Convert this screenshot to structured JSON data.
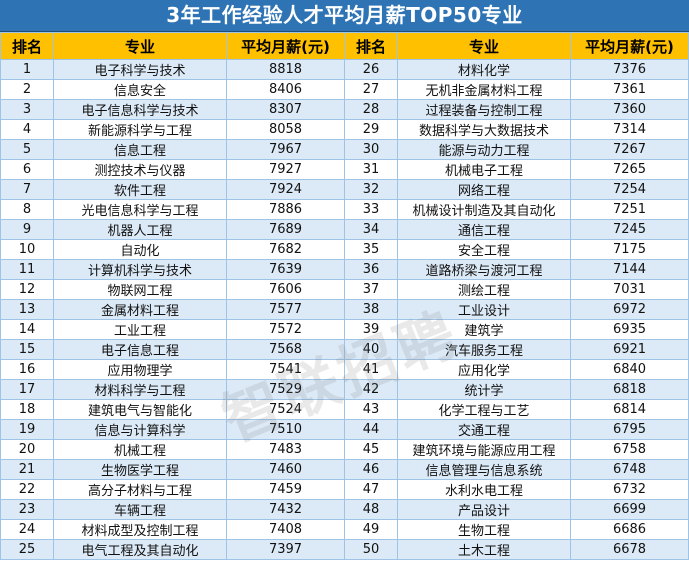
{
  "title": "3年工作经验人才平均月薪TOP50专业",
  "headers": {
    "rank": "排名",
    "major": "专业",
    "salary": "平均月薪(元)"
  },
  "watermark": "智联招聘",
  "colors": {
    "title_bg": "#2e74b5",
    "header_bg": "#ffc000",
    "row_alt_bg": "#dceaf7"
  },
  "rows": [
    {
      "left": {
        "rank": "1",
        "major": "电子科学与技术",
        "salary": "8818"
      },
      "right": {
        "rank": "26",
        "major": "材料化学",
        "salary": "7376"
      }
    },
    {
      "left": {
        "rank": "2",
        "major": "信息安全",
        "salary": "8406"
      },
      "right": {
        "rank": "27",
        "major": "无机非金属材料工程",
        "salary": "7361"
      }
    },
    {
      "left": {
        "rank": "3",
        "major": "电子信息科学与技术",
        "salary": "8307"
      },
      "right": {
        "rank": "28",
        "major": "过程装备与控制工程",
        "salary": "7360"
      }
    },
    {
      "left": {
        "rank": "4",
        "major": "新能源科学与工程",
        "salary": "8058"
      },
      "right": {
        "rank": "29",
        "major": "数据科学与大数据技术",
        "salary": "7314"
      }
    },
    {
      "left": {
        "rank": "5",
        "major": "信息工程",
        "salary": "7967"
      },
      "right": {
        "rank": "30",
        "major": "能源与动力工程",
        "salary": "7267"
      }
    },
    {
      "left": {
        "rank": "6",
        "major": "测控技术与仪器",
        "salary": "7927"
      },
      "right": {
        "rank": "31",
        "major": "机械电子工程",
        "salary": "7265"
      }
    },
    {
      "left": {
        "rank": "7",
        "major": "软件工程",
        "salary": "7924"
      },
      "right": {
        "rank": "32",
        "major": "网络工程",
        "salary": "7254"
      }
    },
    {
      "left": {
        "rank": "8",
        "major": "光电信息科学与工程",
        "salary": "7886"
      },
      "right": {
        "rank": "33",
        "major": "机械设计制造及其自动化",
        "salary": "7251"
      }
    },
    {
      "left": {
        "rank": "9",
        "major": "机器人工程",
        "salary": "7689"
      },
      "right": {
        "rank": "34",
        "major": "通信工程",
        "salary": "7245"
      }
    },
    {
      "left": {
        "rank": "10",
        "major": "自动化",
        "salary": "7682"
      },
      "right": {
        "rank": "35",
        "major": "安全工程",
        "salary": "7175"
      }
    },
    {
      "left": {
        "rank": "11",
        "major": "计算机科学与技术",
        "salary": "7639"
      },
      "right": {
        "rank": "36",
        "major": "道路桥梁与渡河工程",
        "salary": "7144"
      }
    },
    {
      "left": {
        "rank": "12",
        "major": "物联网工程",
        "salary": "7606"
      },
      "right": {
        "rank": "37",
        "major": "测绘工程",
        "salary": "7031"
      }
    },
    {
      "left": {
        "rank": "13",
        "major": "金属材料工程",
        "salary": "7577"
      },
      "right": {
        "rank": "38",
        "major": "工业设计",
        "salary": "6972"
      }
    },
    {
      "left": {
        "rank": "14",
        "major": "工业工程",
        "salary": "7572"
      },
      "right": {
        "rank": "39",
        "major": "建筑学",
        "salary": "6935"
      }
    },
    {
      "left": {
        "rank": "15",
        "major": "电子信息工程",
        "salary": "7568"
      },
      "right": {
        "rank": "40",
        "major": "汽车服务工程",
        "salary": "6921"
      }
    },
    {
      "left": {
        "rank": "16",
        "major": "应用物理学",
        "salary": "7541"
      },
      "right": {
        "rank": "41",
        "major": "应用化学",
        "salary": "6840"
      }
    },
    {
      "left": {
        "rank": "17",
        "major": "材料科学与工程",
        "salary": "7529"
      },
      "right": {
        "rank": "42",
        "major": "统计学",
        "salary": "6818"
      }
    },
    {
      "left": {
        "rank": "18",
        "major": "建筑电气与智能化",
        "salary": "7524"
      },
      "right": {
        "rank": "43",
        "major": "化学工程与工艺",
        "salary": "6814"
      }
    },
    {
      "left": {
        "rank": "19",
        "major": "信息与计算科学",
        "salary": "7510"
      },
      "right": {
        "rank": "44",
        "major": "交通工程",
        "salary": "6795"
      }
    },
    {
      "left": {
        "rank": "20",
        "major": "机械工程",
        "salary": "7483"
      },
      "right": {
        "rank": "45",
        "major": "建筑环境与能源应用工程",
        "salary": "6758"
      }
    },
    {
      "left": {
        "rank": "21",
        "major": "生物医学工程",
        "salary": "7460"
      },
      "right": {
        "rank": "46",
        "major": "信息管理与信息系统",
        "salary": "6748"
      }
    },
    {
      "left": {
        "rank": "22",
        "major": "高分子材料与工程",
        "salary": "7459"
      },
      "right": {
        "rank": "47",
        "major": "水利水电工程",
        "salary": "6732"
      }
    },
    {
      "left": {
        "rank": "23",
        "major": "车辆工程",
        "salary": "7432"
      },
      "right": {
        "rank": "48",
        "major": "产品设计",
        "salary": "6699"
      }
    },
    {
      "left": {
        "rank": "24",
        "major": "材料成型及控制工程",
        "salary": "7408"
      },
      "right": {
        "rank": "49",
        "major": "生物工程",
        "salary": "6686"
      }
    },
    {
      "left": {
        "rank": "25",
        "major": "电气工程及其自动化",
        "salary": "7397"
      },
      "right": {
        "rank": "50",
        "major": "土木工程",
        "salary": "6678"
      }
    }
  ]
}
